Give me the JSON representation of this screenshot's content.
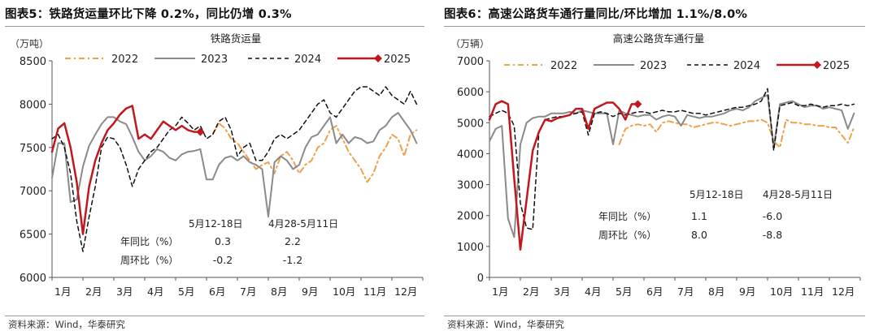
{
  "chart_data": [
    {
      "type": "line",
      "figure_title": "图表5：铁路货运量环比下降 0.2%，同比仍增 0.3%",
      "title": "铁路货运量",
      "unit": "（万吨）",
      "source": "资料来源：Wind，华泰研究",
      "ylim": [
        6000,
        8500
      ],
      "yticks": [
        6000,
        6500,
        7000,
        7500,
        8000,
        8500
      ],
      "categories": [
        "1月",
        "2月",
        "3月",
        "4月",
        "5月",
        "6月",
        "7月",
        "8月",
        "9月",
        "10月",
        "11月",
        "12月"
      ],
      "legend": "top",
      "grid": false,
      "series": [
        {
          "name": "2022",
          "color": "#f0a04b",
          "dash": "7,4,2,4",
          "width": 2,
          "x": [
            6.2,
            6.4,
            6.6,
            6.8,
            7,
            7.2,
            7.4,
            7.6,
            7.8,
            8,
            8.2,
            8.4,
            8.6,
            8.8,
            9,
            9.2,
            9.4,
            9.6,
            9.8,
            10,
            10.2,
            10.4,
            10.6,
            10.8,
            11,
            11.2,
            11.4,
            11.6,
            11.8,
            12,
            12.2,
            12.4,
            12.6,
            12.8
          ],
          "values": [
            7650,
            7780,
            7720,
            7600,
            7550,
            7450,
            7350,
            7250,
            7300,
            7330,
            7200,
            7400,
            7450,
            7350,
            7200,
            7300,
            7350,
            7500,
            7550,
            7700,
            7750,
            7600,
            7450,
            7350,
            7250,
            7100,
            7200,
            7400,
            7500,
            7650,
            7600,
            7400,
            7650,
            7700
          ]
        },
        {
          "name": "2023",
          "color": "#8a8a8a",
          "dash": "",
          "width": 2,
          "x": [
            1,
            1.2,
            1.4,
            1.6,
            1.8,
            2,
            2.2,
            2.4,
            2.6,
            2.8,
            3,
            3.2,
            3.4,
            3.6,
            3.8,
            4,
            4.2,
            4.4,
            4.6,
            4.8,
            5,
            5.2,
            5.4,
            5.6,
            5.8,
            6,
            6.2,
            6.4,
            6.6,
            6.8,
            7,
            7.2,
            7.4,
            7.6,
            7.8,
            8,
            8.2,
            8.4,
            8.6,
            8.8,
            9,
            9.2,
            9.4,
            9.6,
            9.8,
            10,
            10.2,
            10.4,
            10.6,
            10.8,
            11,
            11.2,
            11.4,
            11.6,
            11.8,
            12,
            12.2,
            12.4,
            12.6,
            12.8
          ],
          "values": [
            7150,
            7550,
            7550,
            6870,
            6900,
            7280,
            7520,
            7650,
            7770,
            7850,
            7850,
            7800,
            7770,
            7620,
            7450,
            7350,
            7400,
            7480,
            7450,
            7380,
            7350,
            7420,
            7450,
            7460,
            7480,
            7130,
            7130,
            7300,
            7380,
            7400,
            7350,
            7400,
            7330,
            7300,
            7250,
            6700,
            7330,
            7400,
            7350,
            7250,
            7300,
            7500,
            7620,
            7650,
            7750,
            7850,
            7550,
            7650,
            7550,
            7620,
            7600,
            7550,
            7570,
            7700,
            7750,
            7850,
            7900,
            7800,
            7700,
            7550
          ]
        },
        {
          "name": "2024",
          "color": "#111111",
          "dash": "5,4",
          "width": 1.5,
          "x": [
            1,
            1.2,
            1.4,
            1.6,
            1.8,
            2,
            2.2,
            2.4,
            2.6,
            2.8,
            3,
            3.2,
            3.4,
            3.6,
            3.8,
            4,
            4.2,
            4.4,
            4.6,
            4.8,
            5,
            5.2,
            5.4,
            5.6,
            5.8,
            6,
            6.2,
            6.4,
            6.6,
            6.8,
            7,
            7.2,
            7.4,
            7.6,
            7.8,
            8,
            8.2,
            8.4,
            8.6,
            8.8,
            9,
            9.2,
            9.4,
            9.6,
            9.8,
            10,
            10.2,
            10.4,
            10.6,
            10.8,
            11,
            11.2,
            11.4,
            11.6,
            11.8,
            12,
            12.2,
            12.4,
            12.6,
            12.8
          ],
          "values": [
            7600,
            7650,
            7500,
            7200,
            6650,
            6300,
            6700,
            7050,
            7500,
            7620,
            7600,
            7500,
            7300,
            7050,
            7250,
            7350,
            7450,
            7500,
            7600,
            7700,
            7750,
            7850,
            7780,
            7700,
            7750,
            7600,
            7650,
            7800,
            7850,
            7700,
            7400,
            7500,
            7550,
            7350,
            7350,
            7450,
            7600,
            7650,
            7600,
            7650,
            7700,
            7800,
            7900,
            8000,
            8050,
            7900,
            7850,
            7950,
            8050,
            8150,
            8200,
            8200,
            8150,
            8100,
            8200,
            8100,
            8050,
            8000,
            8150,
            8000
          ]
        },
        {
          "name": "2025",
          "color": "#c0181e",
          "dash": "",
          "width": 2.5,
          "marker_last": true,
          "x": [
            1,
            1.2,
            1.4,
            1.6,
            1.8,
            2,
            2.2,
            2.4,
            2.6,
            2.8,
            3,
            3.2,
            3.4,
            3.6,
            3.8,
            4,
            4.2,
            4.4,
            4.6,
            4.8,
            5,
            5.2,
            5.4,
            5.6,
            5.8
          ],
          "values": [
            7450,
            7720,
            7780,
            7500,
            7100,
            6500,
            7050,
            7350,
            7550,
            7700,
            7780,
            7880,
            7950,
            7980,
            7600,
            7650,
            7600,
            7700,
            7800,
            7750,
            7700,
            7750,
            7700,
            7680,
            7680
          ]
        }
      ],
      "table": {
        "headers": [
          "5月12-18日",
          "4月28-5月11日"
        ],
        "rows": [
          {
            "label": "年同比（%）",
            "values": [
              "0.3",
              "2.2"
            ]
          },
          {
            "label": "周环比（%）",
            "values": [
              "-0.2",
              "-1.2"
            ]
          }
        ]
      }
    },
    {
      "type": "line",
      "figure_title": "图表6：高速公路货车通行量同比/环比增加 1.1%/8.0%",
      "title": "高速公路货车通行量",
      "unit": "（万辆）",
      "source": "资料来源：Wind，华泰研究",
      "ylim": [
        0,
        7000
      ],
      "yticks": [
        0,
        1000,
        2000,
        3000,
        4000,
        5000,
        6000,
        7000
      ],
      "categories": [
        "1月",
        "2月",
        "3月",
        "4月",
        "5月",
        "6月",
        "7月",
        "8月",
        "9月",
        "10月",
        "11月",
        "12月"
      ],
      "legend": "top",
      "grid": false,
      "series": [
        {
          "name": "2022",
          "color": "#f0a04b",
          "dash": "7,4,2,4",
          "width": 2,
          "x": [
            5.2,
            5.4,
            5.6,
            5.8,
            6,
            6.2,
            6.4,
            6.6,
            6.8,
            7,
            7.2,
            7.4,
            7.6,
            7.8,
            8,
            8.2,
            8.4,
            8.6,
            8.8,
            9,
            9.2,
            9.4,
            9.6,
            9.8,
            10,
            10.2,
            10.4,
            10.6,
            10.8,
            11,
            11.2,
            11.4,
            11.6,
            11.8,
            12,
            12.2,
            12.4,
            12.6,
            12.8
          ],
          "values": [
            4300,
            4800,
            4900,
            4950,
            4900,
            4950,
            4700,
            5000,
            5050,
            5000,
            4950,
            4950,
            4850,
            4900,
            4950,
            5000,
            5000,
            4950,
            4900,
            4950,
            5000,
            5050,
            5050,
            5100,
            5000,
            4400,
            4200,
            5100,
            5000,
            5000,
            4950,
            4950,
            4900,
            4900,
            4850,
            4850,
            4600,
            4350,
            4850
          ]
        },
        {
          "name": "2023",
          "color": "#8a8a8a",
          "dash": "",
          "width": 2,
          "x": [
            1,
            1.2,
            1.4,
            1.6,
            1.8,
            2,
            2.2,
            2.4,
            2.6,
            2.8,
            3,
            3.2,
            3.4,
            3.6,
            3.8,
            4,
            4.2,
            4.4,
            4.6,
            4.8,
            5,
            5.2,
            5.4,
            5.6,
            5.8,
            6,
            6.2,
            6.4,
            6.6,
            6.8,
            7,
            7.2,
            7.4,
            7.6,
            7.8,
            8,
            8.2,
            8.4,
            8.6,
            8.8,
            9,
            9.2,
            9.4,
            9.6,
            9.8,
            10,
            10.2,
            10.4,
            10.6,
            10.8,
            11,
            11.2,
            11.4,
            11.6,
            11.8,
            12,
            12.2,
            12.4,
            12.6,
            12.8
          ],
          "values": [
            4400,
            4800,
            4900,
            1900,
            1300,
            4300,
            5000,
            5150,
            5200,
            5200,
            5300,
            5300,
            5300,
            5350,
            5300,
            5400,
            5350,
            5300,
            5300,
            5300,
            4300,
            5400,
            5300,
            5250,
            5200,
            5250,
            5250,
            5100,
            5200,
            5250,
            5200,
            4900,
            5250,
            5200,
            5150,
            5200,
            5200,
            5250,
            5300,
            5400,
            5450,
            5400,
            5500,
            5700,
            5800,
            5900,
            4200,
            5600,
            5650,
            5700,
            5600,
            5500,
            5550,
            5550,
            5450,
            5500,
            5450,
            5400,
            4800,
            5300
          ]
        },
        {
          "name": "2024",
          "color": "#111111",
          "dash": "5,4",
          "width": 1.5,
          "x": [
            1,
            1.2,
            1.4,
            1.6,
            1.8,
            2,
            2.2,
            2.4,
            2.6,
            2.8,
            3,
            3.2,
            3.4,
            3.6,
            3.8,
            4,
            4.2,
            4.4,
            4.6,
            4.8,
            5,
            5.2,
            5.4,
            5.6,
            5.8,
            6,
            6.2,
            6.4,
            6.6,
            6.8,
            7,
            7.2,
            7.4,
            7.6,
            7.8,
            8,
            8.2,
            8.4,
            8.6,
            8.8,
            9,
            9.2,
            9.4,
            9.6,
            9.8,
            10,
            10.2,
            10.4,
            10.6,
            10.8,
            11,
            11.2,
            11.4,
            11.6,
            11.8,
            12,
            12.2,
            12.4,
            12.6,
            12.8
          ],
          "values": [
            5200,
            5300,
            5400,
            5300,
            4900,
            2400,
            1600,
            1550,
            4700,
            5100,
            5150,
            5200,
            5200,
            5250,
            5300,
            5350,
            4600,
            5300,
            5350,
            5300,
            5200,
            5300,
            5250,
            5300,
            5350,
            5350,
            5300,
            5350,
            5400,
            5350,
            5350,
            5400,
            5350,
            5300,
            5300,
            5250,
            5300,
            5350,
            5400,
            5450,
            5500,
            5500,
            5550,
            5600,
            5700,
            6100,
            4100,
            5550,
            5600,
            5650,
            5550,
            5550,
            5600,
            5550,
            5500,
            5550,
            5550,
            5600,
            5550,
            5600
          ]
        },
        {
          "name": "2025",
          "color": "#c0181e",
          "dash": "",
          "width": 2.5,
          "marker_last": true,
          "x": [
            1,
            1.2,
            1.4,
            1.6,
            1.8,
            2,
            2.2,
            2.4,
            2.6,
            2.8,
            3,
            3.2,
            3.4,
            3.6,
            3.8,
            4,
            4.2,
            4.4,
            4.6,
            4.8,
            5,
            5.2,
            5.4,
            5.6,
            5.8
          ],
          "values": [
            5100,
            5600,
            5700,
            5600,
            3200,
            900,
            2500,
            4100,
            4700,
            5100,
            5050,
            5150,
            5200,
            5250,
            5450,
            5450,
            4800,
            5450,
            5550,
            5650,
            5650,
            5450,
            5100,
            5600,
            5600
          ]
        }
      ],
      "table": {
        "headers": [
          "5月12-18日",
          "4月28-5月11日"
        ],
        "rows": [
          {
            "label": "年同比（%）",
            "values": [
              "1.1",
              "-6.0"
            ]
          },
          {
            "label": "周环比（%）",
            "values": [
              "8.0",
              "-8.8"
            ]
          }
        ]
      }
    }
  ]
}
